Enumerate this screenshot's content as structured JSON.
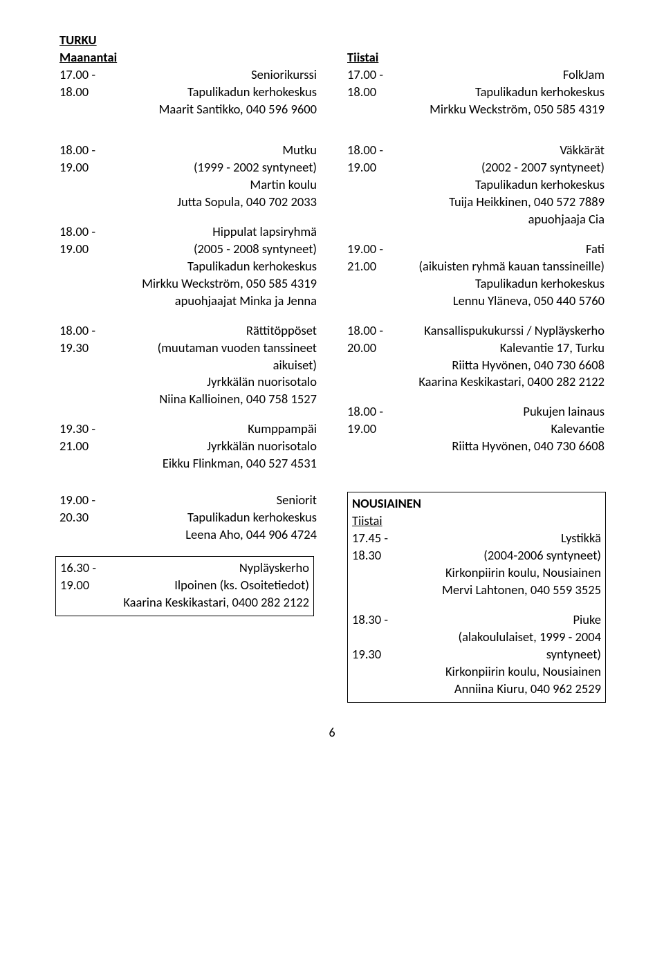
{
  "left": {
    "city": "TURKU",
    "day": "Maanantai",
    "e1": {
      "t1": "17.00 -",
      "t2": "18.00",
      "title": "Seniorikurssi",
      "l2": "Tapulikadun kerhokeskus",
      "l3": "Maarit Santikko, 040 596 9600"
    },
    "e2": {
      "t1": "18.00 -",
      "t2": "19.00",
      "title": "Mutku",
      "l2": "(1999 - 2002 syntyneet)",
      "l3": "Martin koulu",
      "l4": "Jutta Sopula, 040 702 2033"
    },
    "e3": {
      "t1": "18.00 -",
      "t2": "19.00",
      "title": "Hippulat lapsiryhmä",
      "l2": "(2005 - 2008 syntyneet)",
      "l3": "Tapulikadun kerhokeskus",
      "l4": "Mirkku Weckström, 050 585 4319",
      "l5": "apuohjaajat Minka ja Jenna"
    },
    "e4": {
      "t1": "18.00 -",
      "t2": "19.30",
      "title": "Rättitöppöset",
      "l2": "(muutaman vuoden tanssineet",
      "l3": "aikuiset)",
      "l4": "Jyrkkälän nuorisotalo",
      "l5": "Niina Kallioinen, 040 758 1527"
    },
    "e5": {
      "t1": "19.30 -",
      "t2": "21.00",
      "title": "Kumppampäi",
      "l2": "Jyrkkälän nuorisotalo",
      "l3": "Eikku Flinkman, 040 527 4531"
    },
    "e6": {
      "t1": "19.00 -",
      "t2": "20.30",
      "title": "Seniorit",
      "l2": "Tapulikadun kerhokeskus",
      "l3": "Leena Aho, 044 906 4724"
    },
    "e7": {
      "t1": "16.30 -",
      "t2": "19.00",
      "title": "Nypläyskerho",
      "l2": "Ilpoinen (ks. Osoitetiedot)",
      "l3": "Kaarina Keskikastari, 0400 282 2122"
    }
  },
  "right": {
    "day": "Tiistai",
    "e1": {
      "t1": "17.00 -",
      "t2": "18.00",
      "title": "FolkJam",
      "l2": "Tapulikadun kerhokeskus",
      "l3": "Mirkku Weckström, 050 585 4319"
    },
    "e2": {
      "t1": "18.00 -",
      "t2": "19.00",
      "title": "Väkkärät",
      "l2": "(2002 - 2007 syntyneet)",
      "l3": "Tapulikadun kerhokeskus",
      "l4": "Tuija Heikkinen, 040 572 7889",
      "l5": "apuohjaaja Cia"
    },
    "e3": {
      "t1": "19.00 -",
      "t2": "21.00",
      "title": "Fati",
      "l2": "(aikuisten ryhmä kauan tanssineille)",
      "l3": "Tapulikadun kerhokeskus",
      "l4": "Lennu Yläneva, 050 440 5760"
    },
    "e4": {
      "t1": "18.00 -",
      "t2": "20.00",
      "title": "Kansallispukukurssi / Nypläyskerho",
      "l2": "Kalevantie 17, Turku",
      "l3": "Riitta Hyvönen, 040 730 6608",
      "l4": "Kaarina Keskikastari, 0400 282 2122"
    },
    "e5": {
      "t1": "18.00 -",
      "t2": "19.00",
      "title": "Pukujen lainaus",
      "l2": "Kalevantie",
      "l3": "Riitta Hyvönen, 040 730 6608"
    },
    "box": {
      "city": "NOUSIAINEN",
      "day": "Tiistai",
      "e1": {
        "t1": "17.45 -",
        "t2": "18.30",
        "title": "Lystikkä",
        "l2": "(2004-2006 syntyneet)",
        "l3": "Kirkonpiirin koulu, Nousiainen",
        "l4": "Mervi Lahtonen, 040 559 3525"
      },
      "e2": {
        "t1": "18.30 -",
        "t2": "19.30",
        "title": "Piuke",
        "l2": "(alakoululaiset, 1999 - 2004",
        "l3": "syntyneet)",
        "l4": "Kirkonpiirin koulu, Nousiainen",
        "l5": "Anniina Kiuru, 040 962 2529"
      }
    }
  },
  "pagenum": "6"
}
